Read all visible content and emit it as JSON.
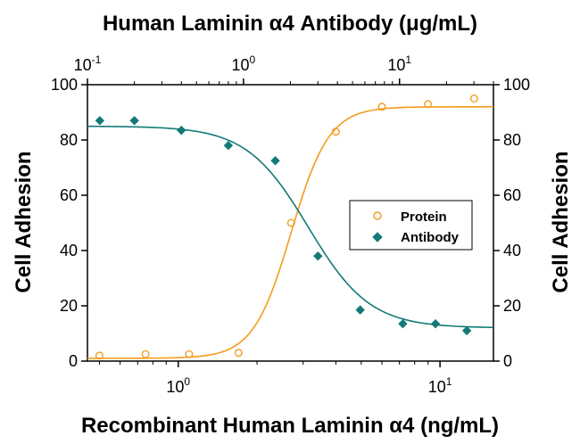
{
  "chart_data": {
    "type": "scatter",
    "title_top": "Human Laminin α4 Antibody (μg/mL)",
    "xlabel_bottom": "Recombinant Human Laminin α4 (ng/mL)",
    "ylabel_left": "Cell Adhesion",
    "ylabel_right": "Cell Adhesion",
    "x_bottom": {
      "scale": "log",
      "range": [
        0.45,
        16
      ],
      "ticks": [
        {
          "value": 1,
          "base": "10",
          "exp": "0"
        },
        {
          "value": 10,
          "base": "10",
          "exp": "1"
        }
      ]
    },
    "x_top": {
      "scale": "log",
      "range": [
        0.1,
        40
      ],
      "ticks": [
        {
          "value": 0.1,
          "base": "10",
          "exp": "-1"
        },
        {
          "value": 1,
          "base": "10",
          "exp": "0"
        },
        {
          "value": 10,
          "base": "10",
          "exp": "1"
        }
      ]
    },
    "y": {
      "range": [
        0,
        100
      ],
      "ticks": [
        "0",
        "20",
        "40",
        "60",
        "80",
        "100"
      ]
    },
    "legend": {
      "position": "right-center",
      "entries": [
        "Protein",
        "Antibody"
      ]
    },
    "series": [
      {
        "name": "Protein",
        "axis": "x_bottom",
        "marker": "open-circle",
        "color": "#F39C1F",
        "x": [
          0.5,
          0.75,
          1.1,
          1.7,
          2.7,
          4.0,
          6.0,
          9.0,
          13.5
        ],
        "y": [
          2,
          2.5,
          2.5,
          3,
          50,
          83,
          92,
          93,
          95
        ],
        "fit": {
          "bottom": 1,
          "top": 92,
          "ec50": 2.7,
          "hill": 6
        }
      },
      {
        "name": "Antibody",
        "axis": "x_top",
        "marker": "filled-diamond",
        "color": "#137A78",
        "x": [
          0.12,
          0.2,
          0.4,
          0.8,
          1.6,
          3.0,
          5.6,
          10.5,
          17,
          27
        ],
        "y": [
          87,
          87,
          83.5,
          78,
          72.5,
          38,
          18.5,
          13.5,
          13.5,
          11
        ],
        "fit": {
          "bottom": 12,
          "top": 85,
          "ec50": 2.6,
          "hill": 2.2
        }
      }
    ]
  }
}
